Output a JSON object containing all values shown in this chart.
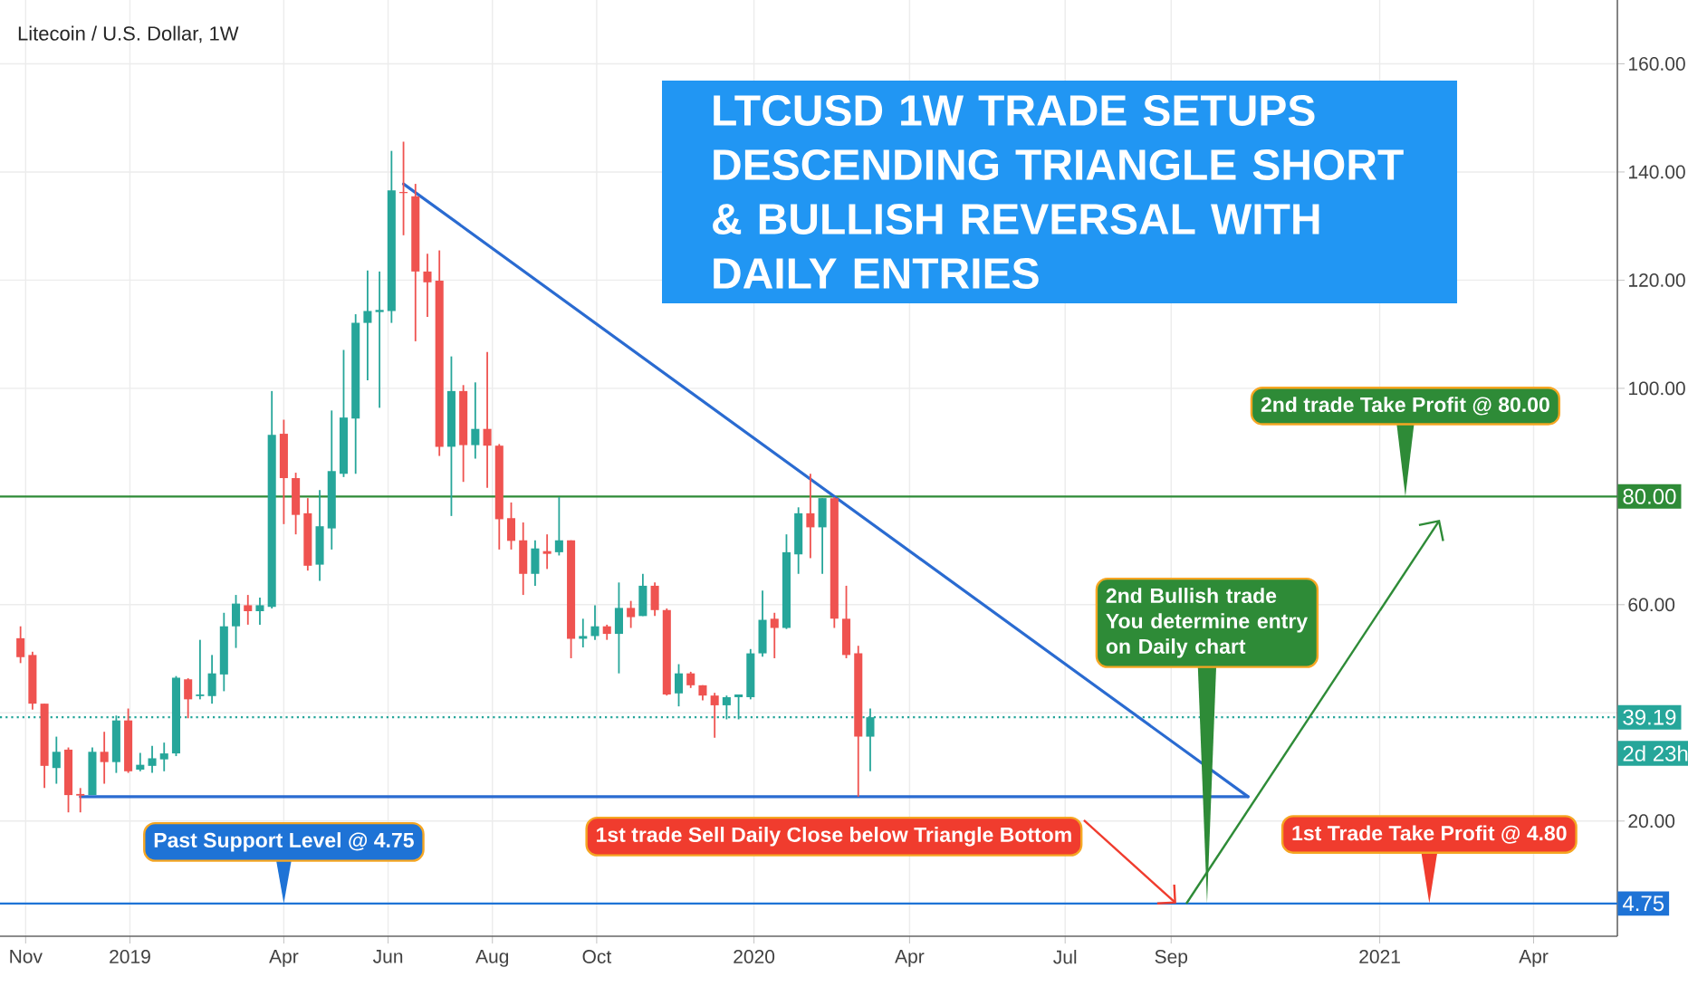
{
  "chart_data": {
    "type": "candlestick",
    "title": "LTCUSD 1W TRADE SETUPS DESCENDING TRIANGLE SHORT & BULLISH REVERSAL WITH DAILY ENTRIES",
    "subtitle": "Litecoin / U.S. Dollar, 1W",
    "x": [
      "2018-10-29",
      "2018-11-05",
      "2018-11-12",
      "2018-11-19",
      "2018-11-26",
      "2018-12-03",
      "2018-12-10",
      "2018-12-17",
      "2018-12-24",
      "2018-12-31",
      "2019-01-07",
      "2019-01-14",
      "2019-01-21",
      "2019-01-28",
      "2019-02-04",
      "2019-02-11",
      "2019-02-18",
      "2019-02-25",
      "2019-03-04",
      "2019-03-11",
      "2019-03-18",
      "2019-03-25",
      "2019-04-01",
      "2019-04-08",
      "2019-04-15",
      "2019-04-22",
      "2019-04-29",
      "2019-05-06",
      "2019-05-13",
      "2019-05-20",
      "2019-05-27",
      "2019-06-03",
      "2019-06-10",
      "2019-06-17",
      "2019-06-24",
      "2019-07-01",
      "2019-07-08",
      "2019-07-15",
      "2019-07-22",
      "2019-07-29",
      "2019-08-05",
      "2019-08-12",
      "2019-08-19",
      "2019-08-26",
      "2019-09-02",
      "2019-09-09",
      "2019-09-16",
      "2019-09-23",
      "2019-09-30",
      "2019-10-07",
      "2019-10-14",
      "2019-10-21",
      "2019-10-28",
      "2019-11-04",
      "2019-11-11",
      "2019-11-18",
      "2019-11-25",
      "2019-12-02",
      "2019-12-09",
      "2019-12-16",
      "2019-12-23",
      "2019-12-30",
      "2020-01-06",
      "2020-01-13",
      "2020-01-20",
      "2020-01-27",
      "2020-02-03",
      "2020-02-10",
      "2020-02-17",
      "2020-02-24",
      "2020-03-02",
      "2020-03-09"
    ],
    "ohlc": [
      [
        53.8,
        56.0,
        49.2,
        50.3
      ],
      [
        50.7,
        51.3,
        40.6,
        41.7
      ],
      [
        41.7,
        41.7,
        26.1,
        30.2
      ],
      [
        29.8,
        35.6,
        26.9,
        32.8
      ],
      [
        33.2,
        33.6,
        21.6,
        24.8
      ],
      [
        25.0,
        26.1,
        21.6,
        24.7
      ],
      [
        24.8,
        33.6,
        24.8,
        32.8
      ],
      [
        32.8,
        36.5,
        26.9,
        30.9
      ],
      [
        30.9,
        39.5,
        28.9,
        38.6
      ],
      [
        38.6,
        40.8,
        28.9,
        29.2
      ],
      [
        29.5,
        32.6,
        29.2,
        30.4
      ],
      [
        30.2,
        33.9,
        28.9,
        31.6
      ],
      [
        31.4,
        34.5,
        29.2,
        32.5
      ],
      [
        32.5,
        46.8,
        32.0,
        46.5
      ],
      [
        46.2,
        46.4,
        39.0,
        42.5
      ],
      [
        43.1,
        53.5,
        42.5,
        43.4
      ],
      [
        43.1,
        50.7,
        41.7,
        47.3
      ],
      [
        47.1,
        58.5,
        44.0,
        56.0
      ],
      [
        56.0,
        61.8,
        52.0,
        60.2
      ],
      [
        59.9,
        61.8,
        56.3,
        58.8
      ],
      [
        58.8,
        61.3,
        56.3,
        59.9
      ],
      [
        59.6,
        99.5,
        59.3,
        91.4
      ],
      [
        91.6,
        94.2,
        74.9,
        83.4
      ],
      [
        83.4,
        84.4,
        73.0,
        76.6
      ],
      [
        76.9,
        79.7,
        66.3,
        67.2
      ],
      [
        67.4,
        81.2,
        64.4,
        74.5
      ],
      [
        74.1,
        95.9,
        70.2,
        84.7
      ],
      [
        84.2,
        107.1,
        83.6,
        94.6
      ],
      [
        94.4,
        113.7,
        84.2,
        112.1
      ],
      [
        112.1,
        121.8,
        101.5,
        114.3
      ],
      [
        114.1,
        121.6,
        96.4,
        114.5
      ],
      [
        114.3,
        143.9,
        112.1,
        136.6
      ],
      [
        136.3,
        145.6,
        128.3,
        136.1
      ],
      [
        135.5,
        137.8,
        108.7,
        121.6
      ],
      [
        121.6,
        124.9,
        113.2,
        119.6
      ],
      [
        119.9,
        125.5,
        87.5,
        89.2
      ],
      [
        89.2,
        105.9,
        76.4,
        99.5
      ],
      [
        99.5,
        100.6,
        82.7,
        89.5
      ],
      [
        89.5,
        101.1,
        87.0,
        92.5
      ],
      [
        92.5,
        106.7,
        81.6,
        89.4
      ],
      [
        89.4,
        89.7,
        70.2,
        75.8
      ],
      [
        76.0,
        78.9,
        70.2,
        71.8
      ],
      [
        71.9,
        75.2,
        61.8,
        65.7
      ],
      [
        65.7,
        71.9,
        63.5,
        70.4
      ],
      [
        69.9,
        73.0,
        66.6,
        69.4
      ],
      [
        69.7,
        79.9,
        69.1,
        71.9
      ],
      [
        71.9,
        71.9,
        50.1,
        53.7
      ],
      [
        53.7,
        57.4,
        52.1,
        54.2
      ],
      [
        54.2,
        59.9,
        53.5,
        56.0
      ],
      [
        56.0,
        56.3,
        53.5,
        54.6
      ],
      [
        54.6,
        64.1,
        47.3,
        59.4
      ],
      [
        59.4,
        60.7,
        55.7,
        57.7
      ],
      [
        57.9,
        65.7,
        57.9,
        63.5
      ],
      [
        63.5,
        64.1,
        57.9,
        59.0
      ],
      [
        59.0,
        59.3,
        43.2,
        43.4
      ],
      [
        43.6,
        49.0,
        41.2,
        47.3
      ],
      [
        47.3,
        47.6,
        44.6,
        45.1
      ],
      [
        45.1,
        45.1,
        42.3,
        43.2
      ],
      [
        43.2,
        43.7,
        35.4,
        41.4
      ],
      [
        41.4,
        43.2,
        38.8,
        42.9
      ],
      [
        42.9,
        43.4,
        38.8,
        43.4
      ],
      [
        42.9,
        51.8,
        42.5,
        51.0
      ],
      [
        51.0,
        62.6,
        50.4,
        57.2
      ],
      [
        57.4,
        58.5,
        50.1,
        55.7
      ],
      [
        55.7,
        73.0,
        55.5,
        69.7
      ],
      [
        69.3,
        78.0,
        65.7,
        76.9
      ],
      [
        76.9,
        84.2,
        68.6,
        74.3
      ],
      [
        74.3,
        79.7,
        65.7,
        79.7
      ],
      [
        79.7,
        79.9,
        55.7,
        57.4
      ],
      [
        57.4,
        63.5,
        50.1,
        50.7
      ],
      [
        51.0,
        52.4,
        24.5,
        35.6
      ],
      [
        35.6,
        40.8,
        29.2,
        39.19
      ]
    ],
    "series": [
      {
        "type": "line",
        "color": "#2a6bd1",
        "x": [
          "2019-06-10",
          "2020-10-16"
        ],
        "values": [
          137.8,
          24.5
        ]
      },
      {
        "type": "line",
        "color": "#2a6bd1",
        "x": [
          "2018-12-03",
          "2020-10-16"
        ],
        "values": [
          24.5,
          24.5
        ]
      }
    ],
    "xlim": [
      "2018-10-17",
      "2021-05-20"
    ],
    "ylim": [
      -1.3,
      171.8
    ],
    "xticks": [
      {
        "value": "2018-11-01",
        "label": "Nov"
      },
      {
        "value": "2019-01-01",
        "label": "2019"
      },
      {
        "value": "2019-04-01",
        "label": "Apr"
      },
      {
        "value": "2019-06-01",
        "label": "Jun"
      },
      {
        "value": "2019-08-01",
        "label": "Aug"
      },
      {
        "value": "2019-10-01",
        "label": "Oct"
      },
      {
        "value": "2020-01-01",
        "label": "2020"
      },
      {
        "value": "2020-04-01",
        "label": "Apr"
      },
      {
        "value": "2020-07-01",
        "label": "Jul"
      },
      {
        "value": "2020-09-01",
        "label": "Sep"
      },
      {
        "value": "2021-01-01",
        "label": "2021"
      },
      {
        "value": "2021-04-01",
        "label": "Apr"
      }
    ],
    "yticks": [
      {
        "value": 20,
        "label": "20.00"
      },
      {
        "value": 40,
        "label": null
      },
      {
        "value": 60,
        "label": "60.00"
      },
      {
        "value": 80,
        "label": null
      },
      {
        "value": 100,
        "label": "100.00"
      },
      {
        "value": 120,
        "label": "120.00"
      },
      {
        "value": 140,
        "label": "140.00"
      },
      {
        "value": 160,
        "label": "160.00"
      }
    ],
    "grid": true,
    "ref_lines": [
      {
        "axis": "y",
        "value": 4.75,
        "label": "4.75",
        "color": "#1e73d6",
        "line_style": "solid"
      },
      {
        "axis": "y",
        "value": 39.19,
        "label": "39.19",
        "color": "#26a69a",
        "line_style": "dotted"
      },
      {
        "axis": "y",
        "value": 80,
        "label": "80.00",
        "color": "#2e8b37",
        "line_style": "solid"
      }
    ],
    "annotations": [
      {
        "text": "Past Support Level @ 4.75",
        "x": "2019-04-01",
        "y": 4.75
      },
      {
        "text": "1st trade Sell Daily Close below Triangle Bottom",
        "x": "2020-09-04",
        "y": 4.75
      },
      {
        "text": "2nd Bullish trade You determine entry on Daily chart",
        "x": "2020-09-22",
        "y": 4.75
      },
      {
        "text": "2nd trade Take Profit @ 80.00",
        "x": "2021-01-16",
        "y": 80
      },
      {
        "text": "1st Trade Take Profit @ 4.80",
        "x": "2021-01-30",
        "y": 4.8
      },
      "2d 23h"
    ]
  }
}
